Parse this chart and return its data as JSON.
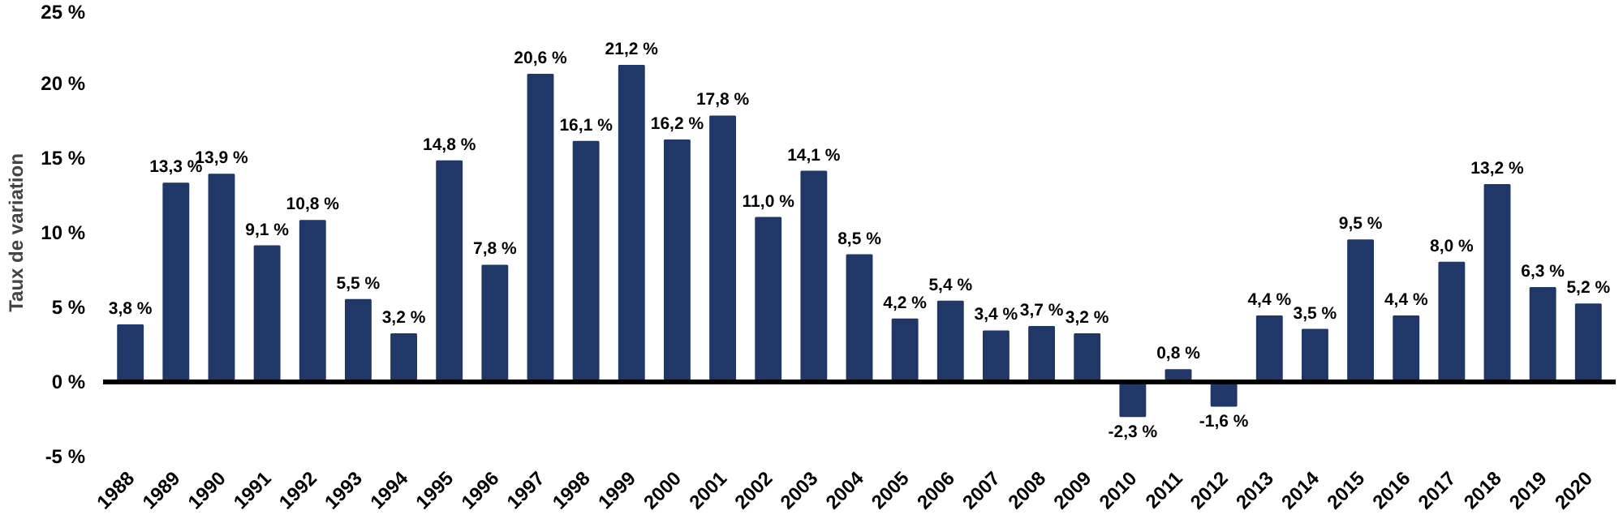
{
  "chart_data": {
    "type": "bar",
    "ylabel": "Taux de variation",
    "categories": [
      "1988",
      "1989",
      "1990",
      "1991",
      "1992",
      "1993",
      "1994",
      "1995",
      "1996",
      "1997",
      "1998",
      "1999",
      "2000",
      "2001",
      "2002",
      "2003",
      "2004",
      "2005",
      "2006",
      "2007",
      "2008",
      "2009",
      "2010",
      "2011",
      "2012",
      "2013",
      "2014",
      "2015",
      "2016",
      "2017",
      "2018",
      "2019",
      "2020"
    ],
    "series": [
      {
        "color": "#1f3868",
        "values": [
          3.8,
          13.3,
          13.9,
          9.1,
          10.8,
          5.5,
          3.2,
          14.8,
          7.8,
          20.6,
          16.1,
          21.2,
          16.2,
          17.8,
          11.0,
          14.1,
          8.5,
          4.2,
          5.4,
          3.4,
          3.7,
          3.2,
          -2.3,
          0.8,
          -1.6,
          4.4,
          3.5,
          9.5,
          4.4,
          8.0,
          13.2,
          6.3,
          5.2
        ],
        "value_labels": [
          "3,8 %",
          "13,3 %",
          "13,9 %",
          "9,1 %",
          "10,8 %",
          "5,5 %",
          "3,2 %",
          "14,8 %",
          "7,8 %",
          "20,6 %",
          "16,1 %",
          "21,2 %",
          "16,2 %",
          "17,8 %",
          "11,0 %",
          "14,1 %",
          "8,5 %",
          "4,2 %",
          "5,4 %",
          "3,4 %",
          "3,7 %",
          "3,2 %",
          "-2,3 %",
          "0,8 %",
          "-1,6 %",
          "4,4 %",
          "3,5 %",
          "9,5 %",
          "4,4 %",
          "8,0 %",
          "13,2 %",
          "6,3 %",
          "5,2 %"
        ]
      }
    ],
    "ylim": [
      -5,
      25
    ],
    "yticks": [
      {
        "value": -5,
        "label": "-5 %"
      },
      {
        "value": 0,
        "label": "0 %"
      },
      {
        "value": 5,
        "label": "5 %"
      },
      {
        "value": 10,
        "label": "10 %"
      },
      {
        "value": 15,
        "label": "15 %"
      },
      {
        "value": 20,
        "label": "20 %"
      },
      {
        "value": 25,
        "label": "25 %"
      }
    ],
    "ref_lines": [
      {
        "axis": "y",
        "value": 0,
        "color": "#000000"
      }
    ],
    "grid": false
  }
}
